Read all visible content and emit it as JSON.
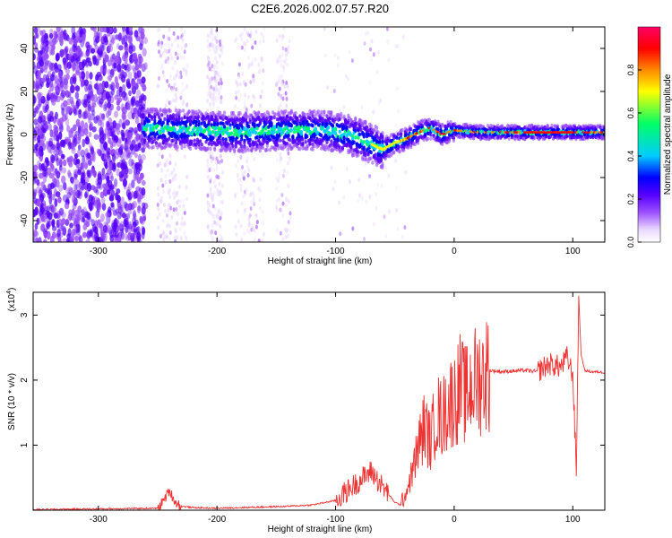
{
  "chart_data": [
    {
      "type": "heatmap",
      "title": "C2E6.2026.002.07.57.R20",
      "xlabel": "Height of straight line (km)",
      "ylabel": "Frequency (Hz)",
      "xlim": [
        -355,
        127
      ],
      "ylim": [
        -50,
        50
      ],
      "xticks": [
        -300,
        -200,
        -100,
        0,
        100
      ],
      "yticks": [
        -40,
        -20,
        0,
        20,
        40
      ],
      "colorbar": {
        "label": "Normalized spectral amplitude",
        "range": [
          0.0,
          1.0
        ],
        "ticks": [
          0.0,
          0.2,
          0.4,
          0.6,
          0.8
        ],
        "tick_labels": [
          "0.0",
          "0.2",
          "0.4",
          "0.6",
          "0.8"
        ],
        "colors": [
          "#ffffff",
          "#e8d6ff",
          "#9a4dff",
          "#5500ff",
          "#0000ff",
          "#00ccff",
          "#00ff66",
          "#ffff00",
          "#ff8800",
          "#ff0000",
          "#ff0066"
        ]
      },
      "ridge": {
        "x": [
          -260,
          -220,
          -180,
          -140,
          -110,
          -90,
          -75,
          -60,
          -50,
          -40,
          -30,
          -20,
          -10,
          0,
          20,
          60,
          100,
          127
        ],
        "freq": [
          3,
          2,
          1,
          2,
          2,
          0,
          -3,
          -7,
          -4,
          -2,
          1,
          3,
          0,
          2,
          1,
          1,
          1,
          1
        ]
      }
    },
    {
      "type": "line",
      "xlabel": "Height of straight line (km)",
      "ylabel": "SNR (10 * v/v)",
      "y_multiplier": "(x10",
      "y_multiplier_exp": "4",
      "y_multiplier_close": ")",
      "xlim": [
        -355,
        127
      ],
      "ylim": [
        0,
        3.35
      ],
      "xticks": [
        -300,
        -200,
        -100,
        0,
        100
      ],
      "yticks": [
        1,
        2,
        3
      ],
      "color": "#ee3333",
      "series": [
        {
          "name": "SNR",
          "x": [
            -355,
            -300,
            -250,
            -245,
            -240,
            -235,
            -230,
            -220,
            -200,
            -180,
            -160,
            -140,
            -120,
            -100,
            -90,
            -80,
            -70,
            -60,
            -50,
            -45,
            -40,
            -35,
            -30,
            -25,
            -20,
            -15,
            -10,
            -5,
            0,
            5,
            10,
            15,
            20,
            30,
            40,
            60,
            70,
            80,
            90,
            95,
            100,
            103,
            105,
            107,
            110,
            115,
            127
          ],
          "y": [
            0.01,
            0.02,
            0.03,
            0.15,
            0.3,
            0.12,
            0.06,
            0.04,
            0.03,
            0.04,
            0.05,
            0.06,
            0.08,
            0.15,
            0.3,
            0.45,
            0.6,
            0.35,
            0.12,
            0.08,
            0.3,
            0.6,
            1.0,
            1.3,
            1.05,
            1.5,
            1.4,
            1.65,
            1.7,
            1.9,
            1.75,
            1.95,
            2.0,
            2.15,
            2.13,
            2.15,
            2.13,
            2.25,
            2.2,
            2.35,
            2.1,
            0.6,
            3.3,
            2.4,
            2.15,
            2.13,
            2.12
          ]
        }
      ]
    }
  ]
}
